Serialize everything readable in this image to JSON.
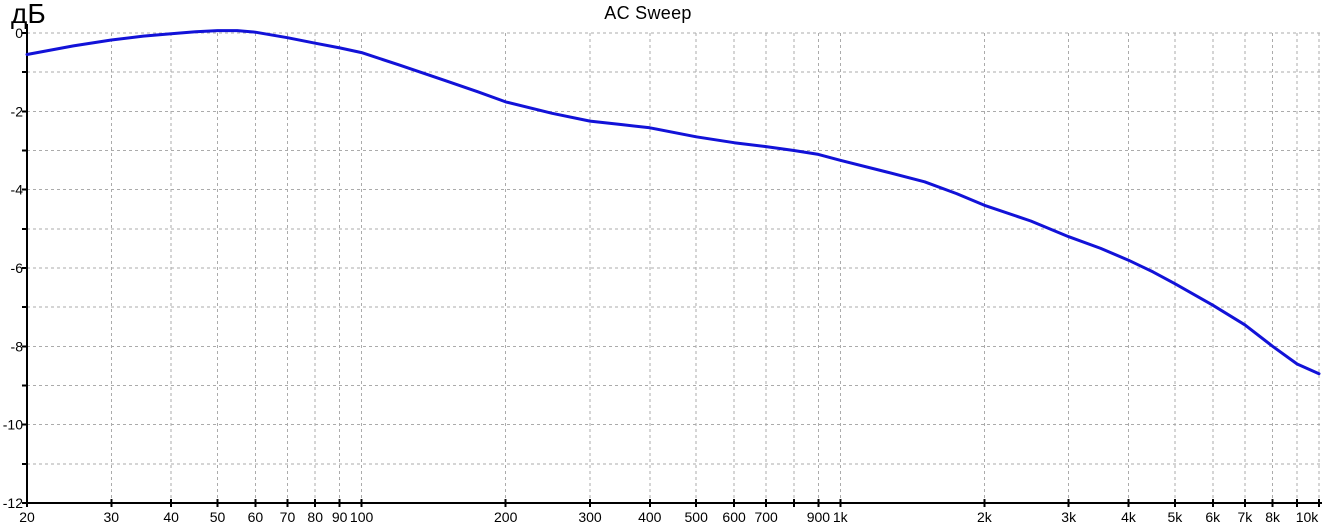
{
  "chart_data": {
    "type": "line",
    "title": "AC Sweep",
    "ylabel": "дБ",
    "xlabel": "",
    "x_scale": "log",
    "xlim": [
      20,
      10000
    ],
    "ylim": [
      -12,
      0
    ],
    "grid": true,
    "y_grid_step": 1,
    "y_tick_values": [
      0,
      -2,
      -4,
      -6,
      -8,
      -10,
      -12
    ],
    "y_tick_labels": [
      "0",
      "-2",
      "-4",
      "-6",
      "-8",
      "-10",
      "-12"
    ],
    "x_tick_values": [
      20,
      30,
      40,
      50,
      60,
      70,
      80,
      90,
      100,
      200,
      300,
      400,
      500,
      600,
      700,
      800,
      900,
      1000,
      2000,
      3000,
      4000,
      5000,
      6000,
      7000,
      8000,
      9000,
      10000
    ],
    "x_tick_labels": [
      "20",
      "30",
      "40",
      "50",
      "60",
      "70",
      "80",
      "90",
      "100",
      "200",
      "300",
      "400",
      "500",
      "600",
      "700",
      "",
      "900",
      "1k",
      "2k",
      "3k",
      "4k",
      "5k",
      "6k",
      "7k",
      "8k",
      "",
      "10k"
    ],
    "legend": "none",
    "colors": {
      "curve": "#1212d8",
      "grid": "#ababab",
      "axis": "#000000",
      "text": "#000000",
      "background": "#ffffff"
    },
    "series": [
      {
        "name": "AC Sweep",
        "x": [
          20,
          25,
          30,
          35,
          40,
          45,
          50,
          55,
          60,
          70,
          80,
          90,
          100,
          120,
          150,
          175,
          200,
          250,
          300,
          350,
          400,
          500,
          600,
          700,
          800,
          900,
          1000,
          1250,
          1500,
          1750,
          2000,
          2500,
          3000,
          3500,
          4000,
          4500,
          5000,
          6000,
          7000,
          8000,
          9000,
          10000
        ],
        "y": [
          -0.55,
          -0.33,
          -0.18,
          -0.08,
          -0.02,
          0.03,
          0.06,
          0.06,
          0.02,
          -0.12,
          -0.26,
          -0.38,
          -0.5,
          -0.82,
          -1.22,
          -1.5,
          -1.76,
          -2.05,
          -2.25,
          -2.34,
          -2.42,
          -2.65,
          -2.8,
          -2.9,
          -3.0,
          -3.1,
          -3.25,
          -3.55,
          -3.8,
          -4.1,
          -4.4,
          -4.8,
          -5.2,
          -5.5,
          -5.8,
          -6.1,
          -6.4,
          -6.95,
          -7.45,
          -8.0,
          -8.45,
          -8.7
        ]
      }
    ]
  }
}
